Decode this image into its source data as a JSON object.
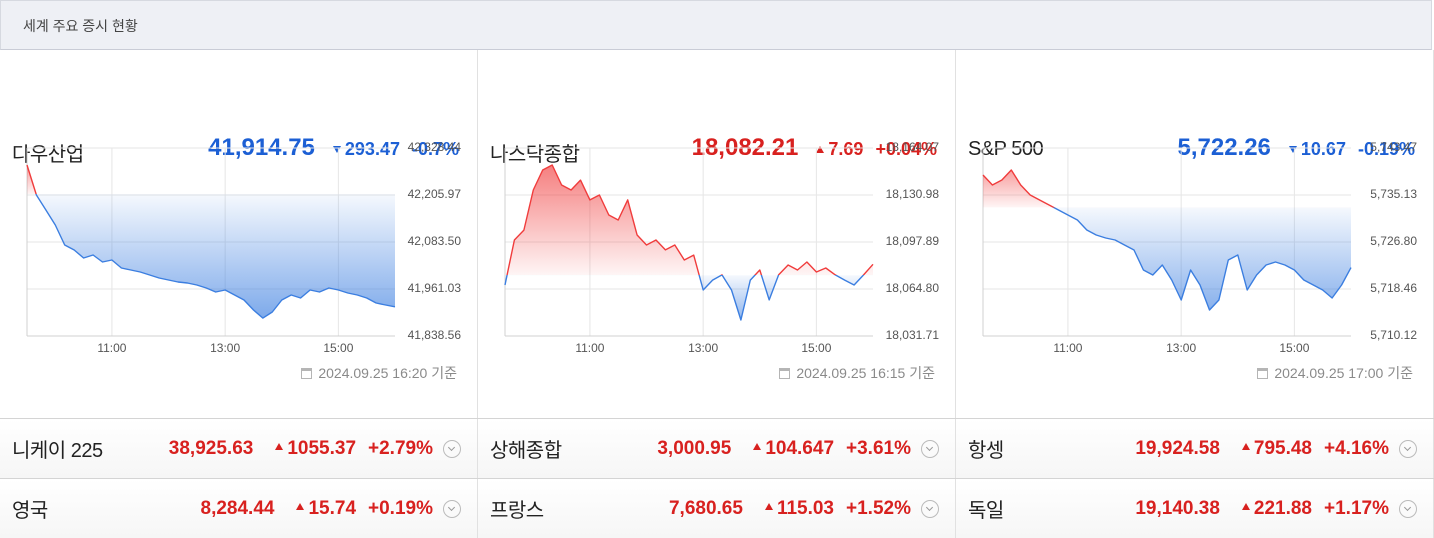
{
  "header": {
    "title": "세계 주요 증시 현황"
  },
  "colors": {
    "up": "#d8211f",
    "down": "#1c5fd4",
    "up_line": "#f03c3c",
    "down_line": "#3b7ee0"
  },
  "indices": [
    {
      "name": "다우산업",
      "price": "41,914.75",
      "change": "293.47",
      "pct": "-0.7%",
      "direction": "down",
      "updated": "2024.09.25 16:20 기준"
    },
    {
      "name": "나스닥종합",
      "price": "18,082.21",
      "change": "7.69",
      "pct": "+0.04%",
      "direction": "up",
      "updated": "2024.09.25 16:15 기준"
    },
    {
      "name": "S&P 500",
      "price": "5,722.26",
      "change": "10.67",
      "pct": "-0.19%",
      "direction": "down",
      "updated": "2024.09.25 17:00 기준"
    }
  ],
  "chart_data": [
    {
      "type": "line",
      "x": [
        "09:30",
        "09:40",
        "09:50",
        "10:00",
        "10:10",
        "10:20",
        "10:30",
        "10:40",
        "10:50",
        "11:00",
        "11:10",
        "11:20",
        "11:30",
        "11:40",
        "11:50",
        "12:00",
        "12:10",
        "12:20",
        "12:30",
        "12:40",
        "12:50",
        "13:00",
        "13:10",
        "13:20",
        "13:30",
        "13:40",
        "13:50",
        "14:00",
        "14:10",
        "14:20",
        "14:30",
        "14:40",
        "14:50",
        "15:00",
        "15:10",
        "15:20",
        "15:30",
        "15:40",
        "15:50",
        "16:00"
      ],
      "values": [
        42284.1,
        42205.9,
        42166.9,
        42127.8,
        42075.7,
        42062.7,
        42041.8,
        42049.6,
        42031.4,
        42036.6,
        42015.7,
        42010.5,
        42005.3,
        41997.5,
        41989.7,
        41984.5,
        41979.2,
        41976.6,
        41971.4,
        41963.6,
        41953.2,
        41958.4,
        41945.4,
        41932.3,
        41906.2,
        41885.3,
        41901.0,
        41932.3,
        41945.4,
        41937.5,
        41958.4,
        41953.2,
        41963.6,
        41958.4,
        41950.6,
        41945.4,
        41937.5,
        41924.6,
        41919.3,
        41914.75
      ],
      "ylim": [
        41838.56,
        42328.44
      ],
      "yticks": [
        {
          "value": 42328.44,
          "label": "42,328.44"
        },
        {
          "value": 42205.97,
          "label": "42,205.97"
        },
        {
          "value": 42083.5,
          "label": "42,083.50"
        },
        {
          "value": 41961.03,
          "label": "41,961.03"
        },
        {
          "value": 41838.56,
          "label": "41,838.56"
        }
      ],
      "xticks": [
        "11:00",
        "13:00",
        "15:00"
      ],
      "grid": true
    },
    {
      "type": "line",
      "x": [
        "09:30",
        "09:40",
        "09:50",
        "10:00",
        "10:10",
        "10:20",
        "10:30",
        "10:40",
        "10:50",
        "11:00",
        "11:10",
        "11:20",
        "11:30",
        "11:40",
        "11:50",
        "12:00",
        "12:10",
        "12:20",
        "12:30",
        "12:40",
        "12:50",
        "13:00",
        "13:10",
        "13:20",
        "13:30",
        "13:40",
        "13:50",
        "14:00",
        "14:10",
        "14:20",
        "14:30",
        "14:40",
        "14:50",
        "15:00",
        "15:10",
        "15:20",
        "15:30",
        "15:40",
        "15:50",
        "16:00"
      ],
      "values": [
        18067.6,
        18099.3,
        18106.3,
        18134.5,
        18148.6,
        18152.1,
        18138.0,
        18134.5,
        18141.5,
        18127.5,
        18131.0,
        18116.9,
        18113.4,
        18127.5,
        18102.8,
        18095.8,
        18099.3,
        18092.3,
        18095.8,
        18085.2,
        18088.7,
        18064.1,
        18071.1,
        18074.7,
        18064.1,
        18043.0,
        18071.1,
        18078.2,
        18057.1,
        18074.7,
        18081.7,
        18078.2,
        18083.8,
        18076.8,
        18079.6,
        18074.7,
        18071.1,
        18067.6,
        18074.7,
        18082.21
      ],
      "ylim": [
        18031.71,
        18164.07
      ],
      "yticks": [
        {
          "value": 18164.07,
          "label": "18,164.07"
        },
        {
          "value": 18130.98,
          "label": "18,130.98"
        },
        {
          "value": 18097.89,
          "label": "18,097.89"
        },
        {
          "value": 18064.8,
          "label": "18,064.80"
        },
        {
          "value": 18031.71,
          "label": "18,031.71"
        }
      ],
      "xticks": [
        "11:00",
        "13:00",
        "15:00"
      ],
      "grid": true
    },
    {
      "type": "line",
      "x": [
        "09:30",
        "09:40",
        "09:50",
        "10:00",
        "10:10",
        "10:20",
        "10:30",
        "10:40",
        "10:50",
        "11:00",
        "11:10",
        "11:20",
        "11:30",
        "11:40",
        "11:50",
        "12:00",
        "12:10",
        "12:20",
        "12:30",
        "12:40",
        "12:50",
        "13:00",
        "13:10",
        "13:20",
        "13:30",
        "13:40",
        "13:50",
        "14:00",
        "14:10",
        "14:20",
        "14:30",
        "14:40",
        "14:50",
        "15:00",
        "15:10",
        "15:20",
        "15:30",
        "15:40",
        "15:50",
        "16:00"
      ],
      "values": [
        5738.68,
        5736.91,
        5737.79,
        5739.57,
        5736.91,
        5735.13,
        5734.25,
        5733.36,
        5732.47,
        5731.58,
        5730.7,
        5728.92,
        5728.04,
        5727.5,
        5727.15,
        5726.26,
        5725.38,
        5721.83,
        5720.94,
        5722.71,
        5720.05,
        5716.51,
        5721.83,
        5719.17,
        5714.73,
        5716.51,
        5723.6,
        5724.49,
        5718.28,
        5720.94,
        5722.71,
        5723.25,
        5722.71,
        5721.83,
        5720.05,
        5719.17,
        5718.28,
        5716.86,
        5719.17,
        5722.26
      ],
      "ylim": [
        5710.12,
        5743.47
      ],
      "yticks": [
        {
          "value": 5743.47,
          "label": "5,743.47"
        },
        {
          "value": 5735.13,
          "label": "5,735.13"
        },
        {
          "value": 5726.8,
          "label": "5,726.80"
        },
        {
          "value": 5718.46,
          "label": "5,718.46"
        },
        {
          "value": 5710.12,
          "label": "5,710.12"
        }
      ],
      "xticks": [
        "11:00",
        "13:00",
        "15:00"
      ],
      "grid": true
    }
  ],
  "rows": [
    [
      {
        "name": "니케이 225",
        "price": "38,925.63",
        "change": "1055.37",
        "pct": "+2.79%",
        "direction": "up"
      },
      {
        "name": "상해종합",
        "price": "3,000.95",
        "change": "104.647",
        "pct": "+3.61%",
        "direction": "up"
      },
      {
        "name": "항셍",
        "price": "19,924.58",
        "change": "795.48",
        "pct": "+4.16%",
        "direction": "up"
      }
    ],
    [
      {
        "name": "영국",
        "price": "8,284.44",
        "change": "15.74",
        "pct": "+0.19%",
        "direction": "up"
      },
      {
        "name": "프랑스",
        "price": "7,680.65",
        "change": "115.03",
        "pct": "+1.52%",
        "direction": "up"
      },
      {
        "name": "독일",
        "price": "19,140.38",
        "change": "221.88",
        "pct": "+1.17%",
        "direction": "up"
      }
    ]
  ]
}
